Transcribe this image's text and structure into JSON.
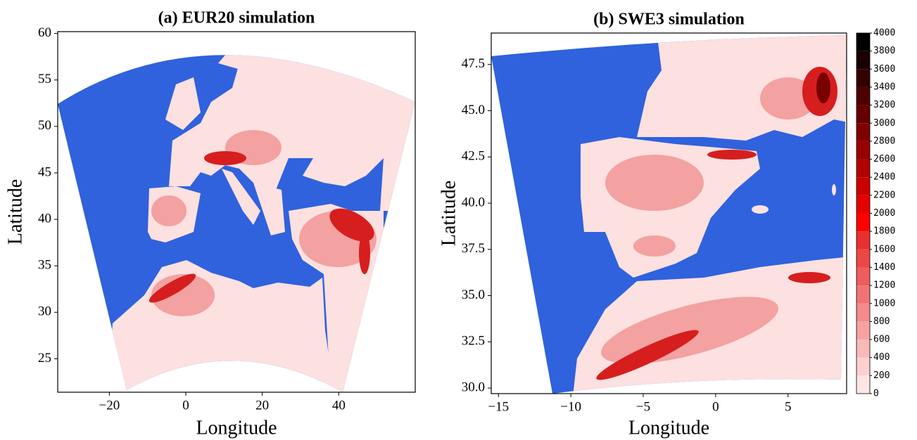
{
  "panels": [
    {
      "title": "(a) EUR20 simulation",
      "xlabel": "Longitude",
      "ylabel": "Latitude",
      "xlim": [
        -33.5,
        60
      ],
      "ylim": [
        21.4,
        60.2
      ],
      "xticks": [
        {
          "value": -20,
          "label": "−20"
        },
        0,
        20,
        40
      ],
      "yticks": [
        25,
        30,
        35,
        40,
        45,
        50,
        55,
        60
      ]
    },
    {
      "title": "(b) SWE3 simulation",
      "xlabel": "Longitude",
      "ylabel": "Latitude",
      "xlim": [
        -15.5,
        9.05
      ],
      "ylim": [
        29.7,
        49.2
      ],
      "xticks": [
        {
          "value": -15,
          "label": "−15"
        },
        {
          "value": -10,
          "label": "−10"
        },
        {
          "value": -5,
          "label": "−5"
        },
        0,
        5
      ],
      "yticks": [
        {
          "value": 30,
          "label": "30.0"
        },
        32.5,
        {
          "value": 35,
          "label": "35.0"
        },
        37.5,
        {
          "value": 40,
          "label": "40.0"
        },
        42.5,
        {
          "value": 45,
          "label": "45.0"
        },
        47.5
      ]
    }
  ],
  "colorbar": {
    "lim": [
      0,
      4000
    ],
    "ticks": [
      0,
      200,
      400,
      600,
      800,
      1000,
      1200,
      1400,
      1600,
      1800,
      2000,
      2200,
      2400,
      2600,
      2800,
      3000,
      3200,
      3400,
      3600,
      3800,
      4000
    ],
    "colors": [
      "#fde6e6",
      "#fbd0d0",
      "#f8b9b9",
      "#f6a2a2",
      "#f38b8b",
      "#f17474",
      "#ee5d5d",
      "#ec4646",
      "#e92f2f",
      "#ff0000",
      "#e60000",
      "#cc0000",
      "#b30000",
      "#990000",
      "#800000",
      "#660000",
      "#4d0000",
      "#330000",
      "#1a0000",
      "#000000"
    ]
  }
}
